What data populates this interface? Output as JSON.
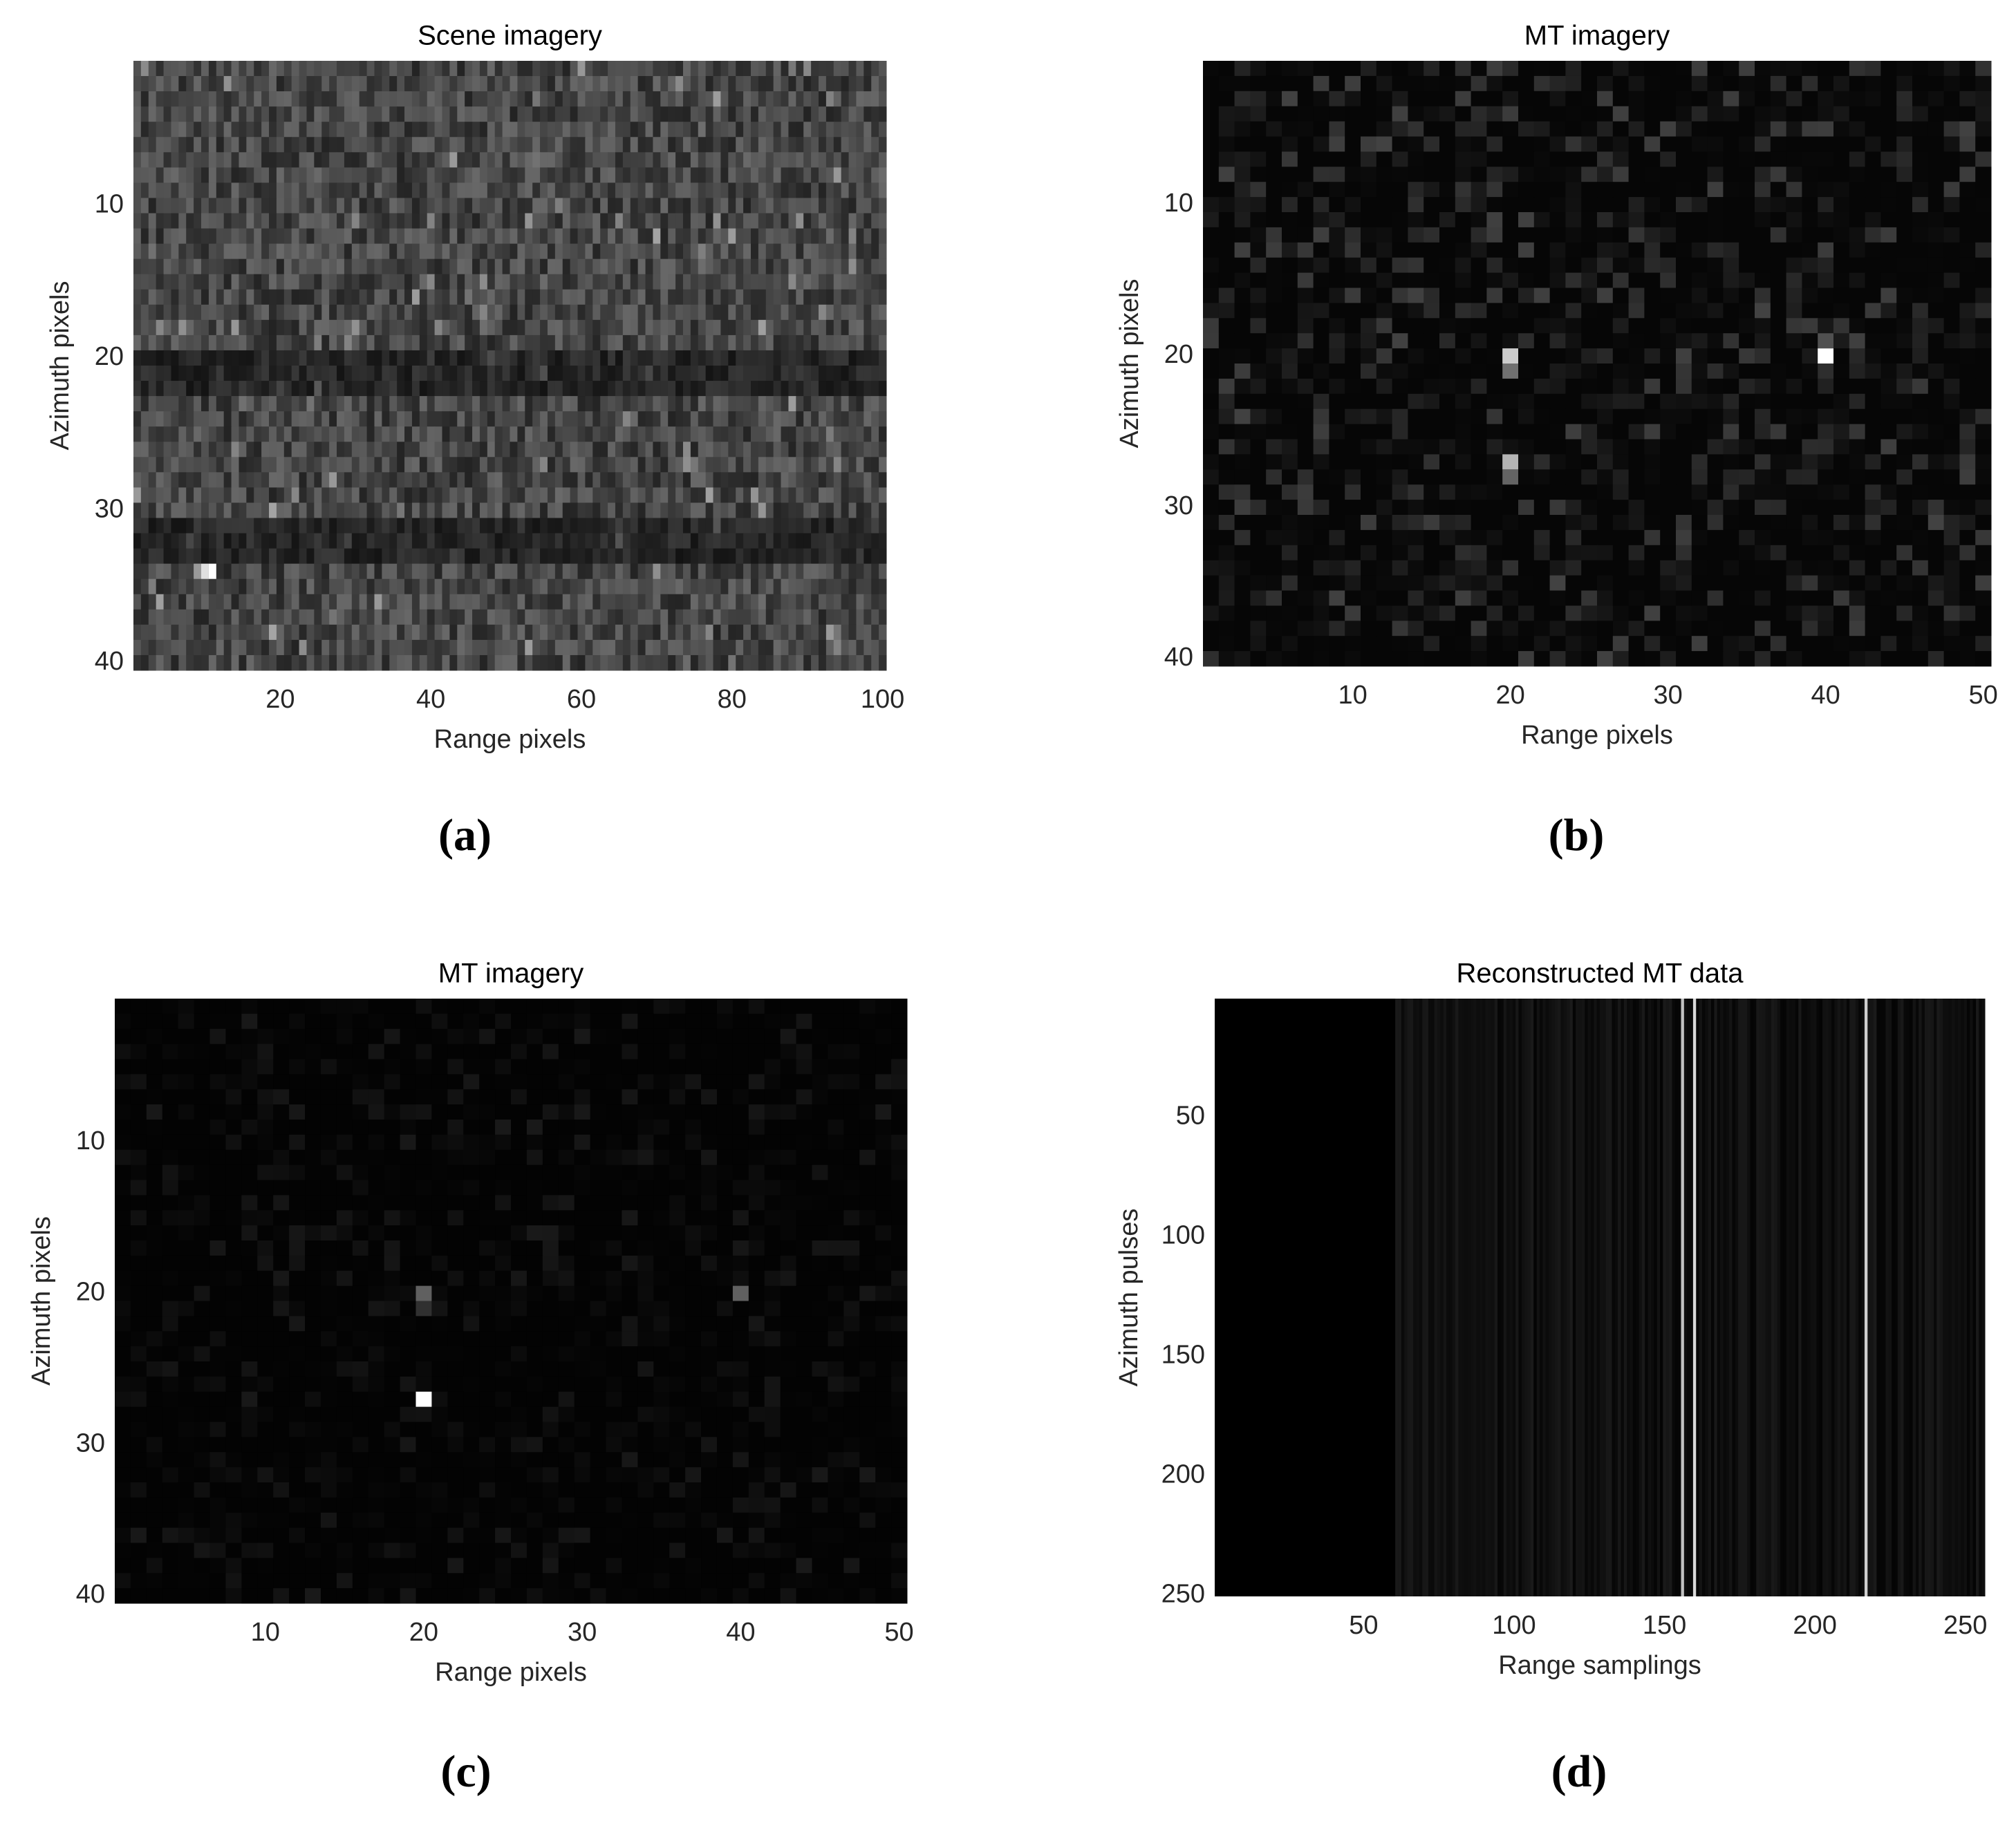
{
  "chart_data": [
    {
      "type": "image",
      "title": "Scene imagery",
      "xlabel": "Range pixels",
      "ylabel": "Azimuth pixels",
      "caption": "(a)",
      "xlim": [
        0.5,
        100.5
      ],
      "ylim": [
        0.5,
        40.5
      ],
      "y_reversed": true,
      "xticks": [
        20,
        40,
        60,
        80,
        100
      ],
      "yticks": [
        10,
        20,
        30,
        40
      ],
      "points": {
        "x": [
          9,
          10,
          11
        ],
        "y": [
          34,
          34,
          34
        ],
        "color": [
          "#9a9a9a",
          "#e0e0e0",
          "#ffffff"
        ]
      }
    },
    {
      "type": "image",
      "title": "MT imagery",
      "xlabel": "Range pixels",
      "ylabel": "Azimuth pixels",
      "caption": "(b)",
      "xlim": [
        0.5,
        50.5
      ],
      "ylim": [
        0.5,
        40.5
      ],
      "y_reversed": true,
      "xticks": [
        10,
        20,
        30,
        40,
        50
      ],
      "yticks": [
        10,
        20,
        30,
        40
      ],
      "points": {
        "x": [
          20,
          20,
          20,
          20,
          40,
          40
        ],
        "y": [
          20,
          21,
          27,
          28,
          20,
          19
        ],
        "color": [
          "#cccccc",
          "#707070",
          "#b4b4b4",
          "#646464",
          "#ffffff",
          "#505050"
        ]
      }
    },
    {
      "type": "image",
      "title": "MT imagery",
      "xlabel": "Range pixels",
      "ylabel": "Azimuth pixels",
      "caption": "(c)",
      "xlim": [
        0.5,
        50.5
      ],
      "ylim": [
        0.5,
        40.5
      ],
      "y_reversed": true,
      "xticks": [
        10,
        20,
        30,
        40,
        50
      ],
      "yticks": [
        10,
        20,
        30,
        40
      ],
      "points": {
        "x": [
          20,
          20,
          20,
          40
        ],
        "y": [
          20,
          21,
          27,
          20
        ],
        "color": [
          "#606060",
          "#303030",
          "#ffffff",
          "#606060"
        ]
      }
    },
    {
      "type": "image",
      "title": "Reconstructed MT data",
      "xlabel": "Range samplings",
      "ylabel": "Azimuth pulses",
      "caption": "(d)",
      "xlim": [
        0.5,
        256.5
      ],
      "ylim": [
        0.5,
        250.5
      ],
      "y_reversed": true,
      "xticks": [
        50,
        100,
        150,
        200,
        250
      ],
      "yticks": [
        50,
        100,
        150,
        200,
        250
      ],
      "lines": {
        "x": [
          156,
          160,
          217
        ],
        "color": [
          "#e0e0e0",
          "#ffffff",
          "#f0f0f0"
        ]
      }
    }
  ]
}
